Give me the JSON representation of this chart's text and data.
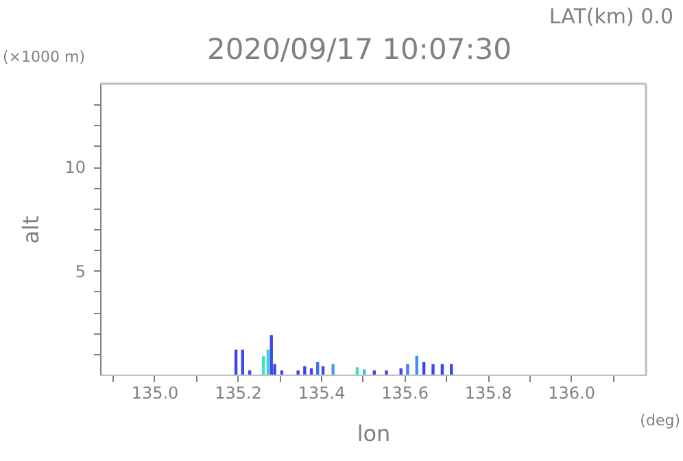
{
  "chart_data": {
    "type": "bar",
    "title": "2020/09/17 10:07:30",
    "xlabel": "lon",
    "ylabel": "alt",
    "annotations": [
      "LAT(km) 0.0",
      "(×1000 m)",
      "(deg)"
    ],
    "x": [
      135.196,
      135.212,
      135.229,
      135.262,
      135.273,
      135.281,
      135.289,
      135.306,
      135.345,
      135.361,
      135.377,
      135.392,
      135.405,
      135.429,
      135.487,
      135.504,
      135.528,
      135.557,
      135.592,
      135.608,
      135.63,
      135.647,
      135.669,
      135.691,
      135.713
    ],
    "values": [
      1.2,
      1.2,
      0.2,
      0.9,
      1.2,
      1.9,
      0.5,
      0.2,
      0.2,
      0.4,
      0.3,
      0.6,
      0.4,
      0.5,
      0.35,
      0.25,
      0.2,
      0.2,
      0.3,
      0.5,
      0.9,
      0.6,
      0.5,
      0.5,
      0.5
    ],
    "colors": [
      "#3c46f0",
      "#3c46f0",
      "#3c46f0",
      "#40e0c0",
      "#40d0d0",
      "#3c46f0",
      "#3c46f0",
      "#3c46f0",
      "#3c46f0",
      "#3c46f0",
      "#3c46f0",
      "#4070f0",
      "#3c46f0",
      "#40a0f0",
      "#40e0a0",
      "#40c0e0",
      "#3c46f0",
      "#3c46f0",
      "#3c46f0",
      "#4080f0",
      "#4090f0",
      "#3c46f0",
      "#3c46f0",
      "#3c46f0",
      "#3c46f0"
    ],
    "xlim": [
      134.87,
      136.18
    ],
    "xticks": [
      {
        "value": 134.9,
        "label": null
      },
      {
        "value": 135,
        "label": "135.0"
      },
      {
        "value": 135.1,
        "label": null
      },
      {
        "value": 135.2,
        "label": "135.2"
      },
      {
        "value": 135.3,
        "label": null
      },
      {
        "value": 135.4,
        "label": "135.4"
      },
      {
        "value": 135.5,
        "label": null
      },
      {
        "value": 135.6,
        "label": "135.6"
      },
      {
        "value": 135.7,
        "label": null
      },
      {
        "value": 135.8,
        "label": "135.8"
      },
      {
        "value": 135.9,
        "label": null
      },
      {
        "value": 136,
        "label": "136.0"
      },
      {
        "value": 136.1,
        "label": null
      }
    ],
    "ylim": [
      0,
      14
    ],
    "yticks": [
      {
        "value": 1,
        "label": null
      },
      {
        "value": 2,
        "label": null
      },
      {
        "value": 3,
        "label": null
      },
      {
        "value": 4,
        "label": null
      },
      5,
      {
        "value": 6,
        "label": null
      },
      {
        "value": 7,
        "label": null
      },
      {
        "value": 8,
        "label": null
      },
      {
        "value": 9,
        "label": null
      },
      10,
      {
        "value": 11,
        "label": null
      },
      {
        "value": 12,
        "label": null
      },
      {
        "value": 13,
        "label": null
      }
    ],
    "grid": false
  }
}
